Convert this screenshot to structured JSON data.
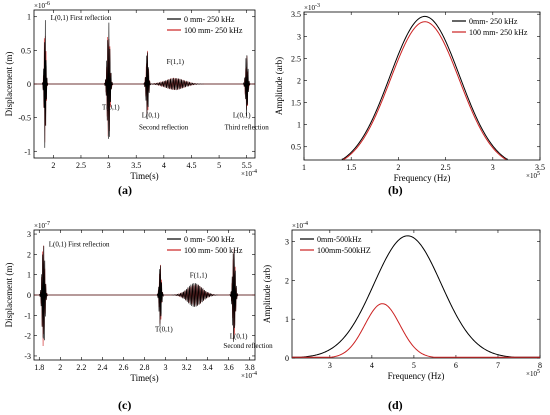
{
  "figure": {
    "panel_labels": {
      "a": "(a)",
      "b": "(b)",
      "c": "(c)",
      "d": "(d)"
    }
  },
  "chart_data": [
    {
      "panel": "a",
      "type": "line",
      "xlabel": "Time(s)",
      "ylabel": "Displacement (m)",
      "x_exponent": "×10",
      "x_exponent_power": "-4",
      "y_exponent": "×10",
      "y_exponent_power": "-6",
      "xlim": [
        1.65,
        5.65
      ],
      "ylim": [
        -1.1,
        1.1
      ],
      "xticks": [
        2,
        2.5,
        3,
        3.5,
        4,
        4.5,
        5,
        5.5
      ],
      "xtick_labels": [
        "2",
        "2.5",
        "3",
        "3.5",
        "4",
        "4.5",
        "5",
        "5.5"
      ],
      "yticks": [
        -1,
        -0.5,
        0,
        0.5,
        1
      ],
      "ytick_labels": [
        "-1",
        "-0.5",
        "0",
        "0.5",
        "1"
      ],
      "legend_position": "top-right",
      "series": [
        {
          "name": "0 mm- 250 kHz",
          "color": "#000000"
        },
        {
          "name": "100 mm- 250 kHz",
          "color": "#cc2222"
        }
      ],
      "packets": [
        {
          "center": 1.85,
          "halfwidth": 0.04,
          "amp": 1.0,
          "amp_ref": 0.95,
          "cycles": 5
        },
        {
          "center": 3.0,
          "halfwidth": 0.06,
          "amp": 0.95,
          "amp_ref": 0.88,
          "cycles": 6
        },
        {
          "center": 3.7,
          "halfwidth": 0.05,
          "amp": 0.55,
          "amp_ref": 0.5,
          "cycles": 5
        },
        {
          "center": 4.2,
          "halfwidth": 0.4,
          "amp": 0.09,
          "amp_ref": 0.09,
          "cycles": 28
        },
        {
          "center": 5.5,
          "halfwidth": 0.05,
          "amp": 0.5,
          "amp_ref": 0.42,
          "cycles": 5
        }
      ],
      "annotations": [
        {
          "text": "L(0,1) First reflection",
          "x": 1.95,
          "y": 0.95
        },
        {
          "text": "T(0,1)",
          "x": 2.88,
          "y": -0.38
        },
        {
          "text": "L(0,1)",
          "x": 3.6,
          "y": -0.5
        },
        {
          "text": "Second reflection",
          "x": 3.55,
          "y": -0.68
        },
        {
          "text": "F(1,1)",
          "x": 4.05,
          "y": 0.3
        },
        {
          "text": "L(0,1)",
          "x": 5.25,
          "y": -0.5
        },
        {
          "text": "Third reflection",
          "x": 5.1,
          "y": -0.68
        }
      ]
    },
    {
      "panel": "b",
      "type": "line",
      "xlabel": "Frequency (Hz)",
      "ylabel": "Amplitude (arb)",
      "x_exponent": "×10",
      "x_exponent_power": "5",
      "y_exponent": "×10",
      "y_exponent_power": "-3",
      "xlim": [
        1,
        3.5
      ],
      "ylim": [
        0.2,
        3.55
      ],
      "xticks": [
        1,
        1.5,
        2,
        2.5,
        3,
        3.5
      ],
      "xtick_labels": [
        "1",
        "1.5",
        "2",
        "2.5",
        "3",
        "3.5"
      ],
      "yticks": [
        0.5,
        1,
        1.5,
        2,
        2.5,
        3,
        3.5
      ],
      "ytick_labels": [
        "0.5",
        "1",
        "1.5",
        "2",
        "2.5",
        "3",
        "3.5"
      ],
      "legend_position": "top-right",
      "series": [
        {
          "name": "0mm- 250 kHz",
          "color": "#000000",
          "peak_x": 2.28,
          "peak_y": 3.45,
          "sigma": 0.37
        },
        {
          "name": "100 mm- 250 kHz",
          "color": "#cc2222",
          "peak_x": 2.28,
          "peak_y": 3.33,
          "sigma": 0.365
        }
      ]
    },
    {
      "panel": "c",
      "type": "line",
      "xlabel": "Time(s)",
      "ylabel": "Displacement (m)",
      "x_exponent": "×10",
      "x_exponent_power": "-4",
      "y_exponent": "×10",
      "y_exponent_power": "-7",
      "xlim": [
        1.75,
        3.85
      ],
      "ylim": [
        -3.2,
        3.2
      ],
      "xticks": [
        1.8,
        2,
        2.2,
        2.4,
        2.6,
        2.8,
        3,
        3.2,
        3.4,
        3.6,
        3.8
      ],
      "xtick_labels": [
        "1.8",
        "2",
        "2.2",
        "2.4",
        "2.6",
        "2.8",
        "3",
        "3.2",
        "3.4",
        "3.6",
        "3.8"
      ],
      "yticks": [
        -3,
        -2,
        -1,
        0,
        1,
        2,
        3
      ],
      "ytick_labels": [
        "-3",
        "-2",
        "-1",
        "0",
        "1",
        "2",
        "3"
      ],
      "legend_position": "top-right",
      "series": [
        {
          "name": "0 mm- 500 kHz",
          "color": "#000000"
        },
        {
          "name": "100 mm- 500 kHz",
          "color": "#cc2222"
        }
      ],
      "packets": [
        {
          "center": 1.84,
          "halfwidth": 0.03,
          "amp": 2.9,
          "amp_ref": 2.7,
          "cycles": 6
        },
        {
          "center": 2.95,
          "halfwidth": 0.025,
          "amp": 1.7,
          "amp_ref": 1.5,
          "cycles": 5
        },
        {
          "center": 3.28,
          "halfwidth": 0.17,
          "amp": 0.6,
          "amp_ref": 0.55,
          "cycles": 24
        },
        {
          "center": 3.65,
          "halfwidth": 0.03,
          "amp": 2.5,
          "amp_ref": 2.3,
          "cycles": 6
        }
      ],
      "annotations": [
        {
          "text": "L(0,1) First reflection",
          "x": 1.89,
          "y": 2.4
        },
        {
          "text": "T(0,1)",
          "x": 2.9,
          "y": -1.8
        },
        {
          "text": "F(1,1)",
          "x": 3.23,
          "y": 0.85
        },
        {
          "text": "L(0,1)",
          "x": 3.61,
          "y": -2.15
        },
        {
          "text": "Second reflection",
          "x": 3.55,
          "y": -2.6
        }
      ]
    },
    {
      "panel": "d",
      "type": "line",
      "xlabel": "Frequency (Hz)",
      "ylabel": "Amplitude (arb)",
      "x_exponent": "×10",
      "x_exponent_power": "5",
      "y_exponent": "×10",
      "y_exponent_power": "-4",
      "xlim": [
        2.1,
        8
      ],
      "ylim": [
        0,
        3.3
      ],
      "xticks": [
        3,
        4,
        5,
        6,
        7,
        8
      ],
      "xtick_labels": [
        "3",
        "4",
        "5",
        "6",
        "7",
        "8"
      ],
      "yticks": [
        0,
        1,
        2,
        3
      ],
      "ytick_labels": [
        "0",
        "1",
        "2",
        "3"
      ],
      "legend_position": "top-left",
      "series": [
        {
          "name": "0mm-500kHz",
          "color": "#000000",
          "peak_x": 4.85,
          "peak_y": 3.15,
          "sigma": 0.8
        },
        {
          "name": "100mm-500kHZ",
          "color": "#cc2222",
          "peak_x": 4.25,
          "peak_y": 1.4,
          "sigma": 0.42
        }
      ]
    }
  ]
}
